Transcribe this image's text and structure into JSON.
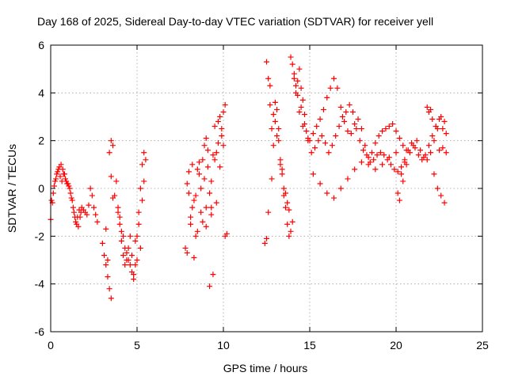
{
  "chart_data": {
    "type": "scatter",
    "title": "Day 168 of 2025, Sidereal Day-to-day VTEC variation (SDTVAR) for receiver yell",
    "xlabel": "GPS time / hours",
    "ylabel": "SDTVAR / TECUs",
    "xlim": [
      0,
      25
    ],
    "ylim": [
      -6,
      6
    ],
    "xticks": [
      0,
      5,
      10,
      15,
      20,
      25
    ],
    "xtick_labels": [
      "0",
      "5",
      "10",
      "15",
      "20",
      "25"
    ],
    "yticks": [
      -6,
      -4,
      -2,
      0,
      2,
      4,
      6
    ],
    "ytick_labels": [
      "-6",
      "-4",
      "-2",
      "0",
      "2",
      "4",
      "6"
    ],
    "grid": true,
    "marker": "+",
    "color": "#ff0000",
    "series": [
      {
        "name": "SDTVAR",
        "x": [
          0.0,
          0.1,
          0.2,
          0.3,
          0.4,
          0.5,
          0.6,
          0.7,
          0.8,
          0.9,
          1.0,
          1.1,
          1.2,
          1.3,
          1.4,
          1.5,
          1.6,
          1.7,
          1.8,
          1.9,
          2.0,
          2.1,
          2.2,
          2.3,
          2.4,
          2.5,
          2.6,
          2.7,
          0.05,
          0.15,
          0.25,
          0.35,
          0.45,
          0.55,
          0.65,
          0.75,
          0.85,
          0.95,
          1.05,
          1.15,
          1.25,
          1.35,
          1.45,
          1.55,
          1.65,
          1.75,
          3.0,
          3.1,
          3.2,
          3.3,
          3.4,
          3.5,
          3.6,
          3.5,
          3.4,
          3.3,
          3.2,
          3.7,
          3.8,
          3.9,
          4.0,
          4.1,
          4.2,
          4.3,
          4.4,
          4.5,
          4.6,
          4.7,
          4.8,
          4.9,
          5.0,
          5.1,
          5.2,
          5.3,
          5.4,
          5.5,
          3.9,
          4.1,
          4.3,
          4.5,
          4.7,
          4.9,
          5.1,
          5.3,
          4.0,
          4.2,
          4.4,
          4.6,
          4.8,
          5.0,
          5.2,
          5.4,
          3.6,
          3.5,
          7.8,
          7.9,
          8.0,
          8.1,
          8.2,
          8.3,
          8.4,
          8.5,
          8.6,
          8.7,
          8.8,
          8.9,
          9.0,
          9.1,
          9.2,
          9.3,
          9.4,
          9.5,
          9.6,
          9.7,
          9.8,
          9.9,
          10.0,
          10.1,
          10.2,
          7.9,
          8.1,
          8.3,
          8.5,
          8.7,
          8.9,
          9.1,
          9.3,
          9.5,
          9.7,
          9.9,
          8.0,
          8.2,
          8.4,
          8.6,
          8.8,
          9.0,
          9.2,
          9.4,
          9.6,
          9.8,
          10.0,
          9.0,
          9.3,
          10.1,
          12.4,
          12.5,
          12.6,
          12.7,
          12.8,
          12.9,
          13.0,
          13.1,
          13.2,
          13.3,
          13.4,
          13.5,
          13.6,
          13.7,
          13.8,
          13.9,
          14.0,
          14.1,
          14.2,
          14.3,
          14.4,
          14.5,
          14.6,
          14.7,
          14.8,
          14.9,
          12.5,
          12.7,
          12.9,
          13.1,
          13.3,
          13.5,
          13.7,
          13.9,
          14.1,
          14.3,
          14.5,
          14.7,
          14.9,
          12.6,
          12.8,
          13.0,
          13.2,
          13.4,
          13.6,
          13.8,
          14.0,
          14.2,
          14.4,
          14.6,
          15.0,
          15.2,
          15.4,
          15.6,
          15.8,
          16.0,
          16.2,
          16.4,
          16.6,
          16.8,
          17.0,
          17.2,
          17.4,
          17.6,
          17.8,
          18.0,
          18.2,
          18.4,
          18.6,
          18.8,
          19.0,
          19.2,
          19.4,
          19.6,
          19.8,
          20.0,
          20.2,
          20.4,
          20.6,
          15.1,
          15.3,
          15.5,
          15.7,
          15.9,
          16.1,
          16.3,
          16.5,
          16.7,
          16.9,
          17.1,
          17.3,
          17.5,
          17.7,
          17.9,
          18.1,
          18.3,
          18.5,
          18.7,
          18.9,
          19.1,
          19.3,
          19.5,
          19.7,
          19.9,
          20.1,
          20.3,
          20.5,
          15.2,
          15.6,
          16.0,
          16.4,
          16.8,
          17.2,
          17.6,
          18.0,
          18.4,
          18.8,
          19.2,
          19.6,
          20.0,
          20.2,
          20.4,
          20.6,
          20.8,
          21.0,
          21.2,
          21.4,
          21.6,
          21.8,
          22.0,
          22.2,
          22.4,
          22.6,
          22.8,
          20.1,
          20.3,
          20.5,
          20.7,
          20.9,
          21.1,
          21.3,
          21.5,
          21.7,
          21.9,
          22.1,
          22.3,
          22.5,
          22.7,
          22.9,
          21.8,
          22.0,
          22.2,
          22.4,
          22.6,
          22.8,
          21.9,
          22.1,
          22.3,
          22.5,
          22.7,
          22.9
        ],
        "y": [
          -1.3,
          -0.6,
          0.1,
          0.4,
          0.7,
          0.9,
          1.0,
          0.8,
          0.6,
          0.3,
          0.2,
          0.0,
          -0.4,
          -0.8,
          -1.2,
          -1.5,
          -1.6,
          -1.2,
          -0.8,
          -0.9,
          -1.0,
          -1.1,
          -0.7,
          0.0,
          -0.3,
          -0.8,
          -1.1,
          -1.4,
          -0.5,
          -0.2,
          0.3,
          0.6,
          0.8,
          0.5,
          0.3,
          0.6,
          0.4,
          0.2,
          0.1,
          -0.2,
          -0.5,
          -1.0,
          -1.4,
          -1.2,
          -0.9,
          -1.0,
          -2.3,
          -2.8,
          -3.2,
          -3.7,
          -4.2,
          -4.6,
          -0.4,
          2.0,
          1.5,
          -3.0,
          -1.7,
          -0.3,
          0.3,
          -0.8,
          -1.5,
          -2.2,
          -2.8,
          -3.2,
          -3.0,
          -2.5,
          -2.0,
          -3.5,
          -3.8,
          -3.2,
          -2.0,
          -1.0,
          0.0,
          1.0,
          1.5,
          1.2,
          -1.0,
          -1.8,
          -2.5,
          -3.0,
          -2.8,
          -2.2,
          -1.5,
          -0.5,
          -1.2,
          -2.0,
          -2.7,
          -3.2,
          -3.6,
          -3.0,
          -2.5,
          0.3,
          1.8,
          0.5,
          -2.5,
          0.2,
          0.7,
          -1.5,
          -0.8,
          -2.9,
          -0.3,
          0.8,
          1.1,
          -1.0,
          1.2,
          1.8,
          2.1,
          0.9,
          -0.2,
          -0.8,
          1.4,
          2.6,
          1.5,
          2.8,
          3.0,
          2.5,
          3.2,
          3.5,
          -1.9,
          -2.7,
          -1.2,
          -0.5,
          -1.8,
          0.0,
          0.4,
          1.6,
          0.3,
          1.2,
          1.9,
          2.2,
          -0.2,
          1.0,
          -2.0,
          0.6,
          -1.4,
          -0.8,
          -4.1,
          -3.6,
          -0.6,
          0.9,
          1.8,
          -1.6,
          -1.1,
          -2.0,
          -2.3,
          5.3,
          4.6,
          3.5,
          2.5,
          1.8,
          2.8,
          3.3,
          2.5,
          1.2,
          0.6,
          0.0,
          -0.8,
          -1.5,
          -2.0,
          5.5,
          5.2,
          4.8,
          4.3,
          4.5,
          5.0,
          4.2,
          3.7,
          3.1,
          2.4,
          2.0,
          -2.1,
          4.3,
          3.1,
          2.2,
          1.0,
          -0.3,
          -0.6,
          -1.8,
          4.6,
          3.9,
          3.4,
          2.7,
          2.1,
          -1.0,
          0.4,
          3.6,
          2.0,
          0.8,
          -0.2,
          -0.9,
          -1.4,
          4.0,
          3.2,
          2.6,
          2.0,
          2.3,
          2.6,
          2.9,
          3.3,
          3.8,
          4.2,
          4.6,
          4.2,
          3.4,
          2.8,
          2.4,
          2.3,
          2.7,
          2.9,
          2.5,
          1.8,
          1.3,
          1.5,
          1.9,
          2.2,
          2.4,
          2.5,
          2.6,
          2.7,
          2.4,
          2.1,
          1.8,
          1.6,
          1.5,
          1.7,
          2.0,
          2.2,
          1.9,
          1.5,
          1.8,
          2.2,
          2.6,
          3.0,
          3.2,
          3.5,
          3.2,
          2.5,
          2.0,
          1.6,
          1.4,
          1.1,
          1.2,
          1.4,
          1.5,
          1.4,
          1.2,
          1.0,
          0.8,
          0.7,
          0.9,
          1.1,
          0.6,
          0.2,
          -0.2,
          -0.4,
          0.0,
          0.4,
          0.8,
          1.1,
          1.0,
          0.8,
          1.0,
          1.3,
          1.5,
          -0.5,
          0.3,
          1.0,
          1.5,
          1.8,
          2.0,
          1.6,
          1.3,
          1.2,
          1.5,
          2.0,
          2.5,
          3.0,
          2.8,
          -0.2,
          0.6,
          1.2,
          1.6,
          1.9,
          1.7,
          1.4,
          1.2,
          1.4,
          1.8,
          2.2,
          2.6,
          2.9,
          2.5,
          2.3,
          3.4,
          3.3,
          0.6,
          0.0,
          -0.3,
          -0.6,
          3.2,
          2.9,
          2.6,
          1.6,
          1.7,
          1.5
        ]
      }
    ]
  }
}
